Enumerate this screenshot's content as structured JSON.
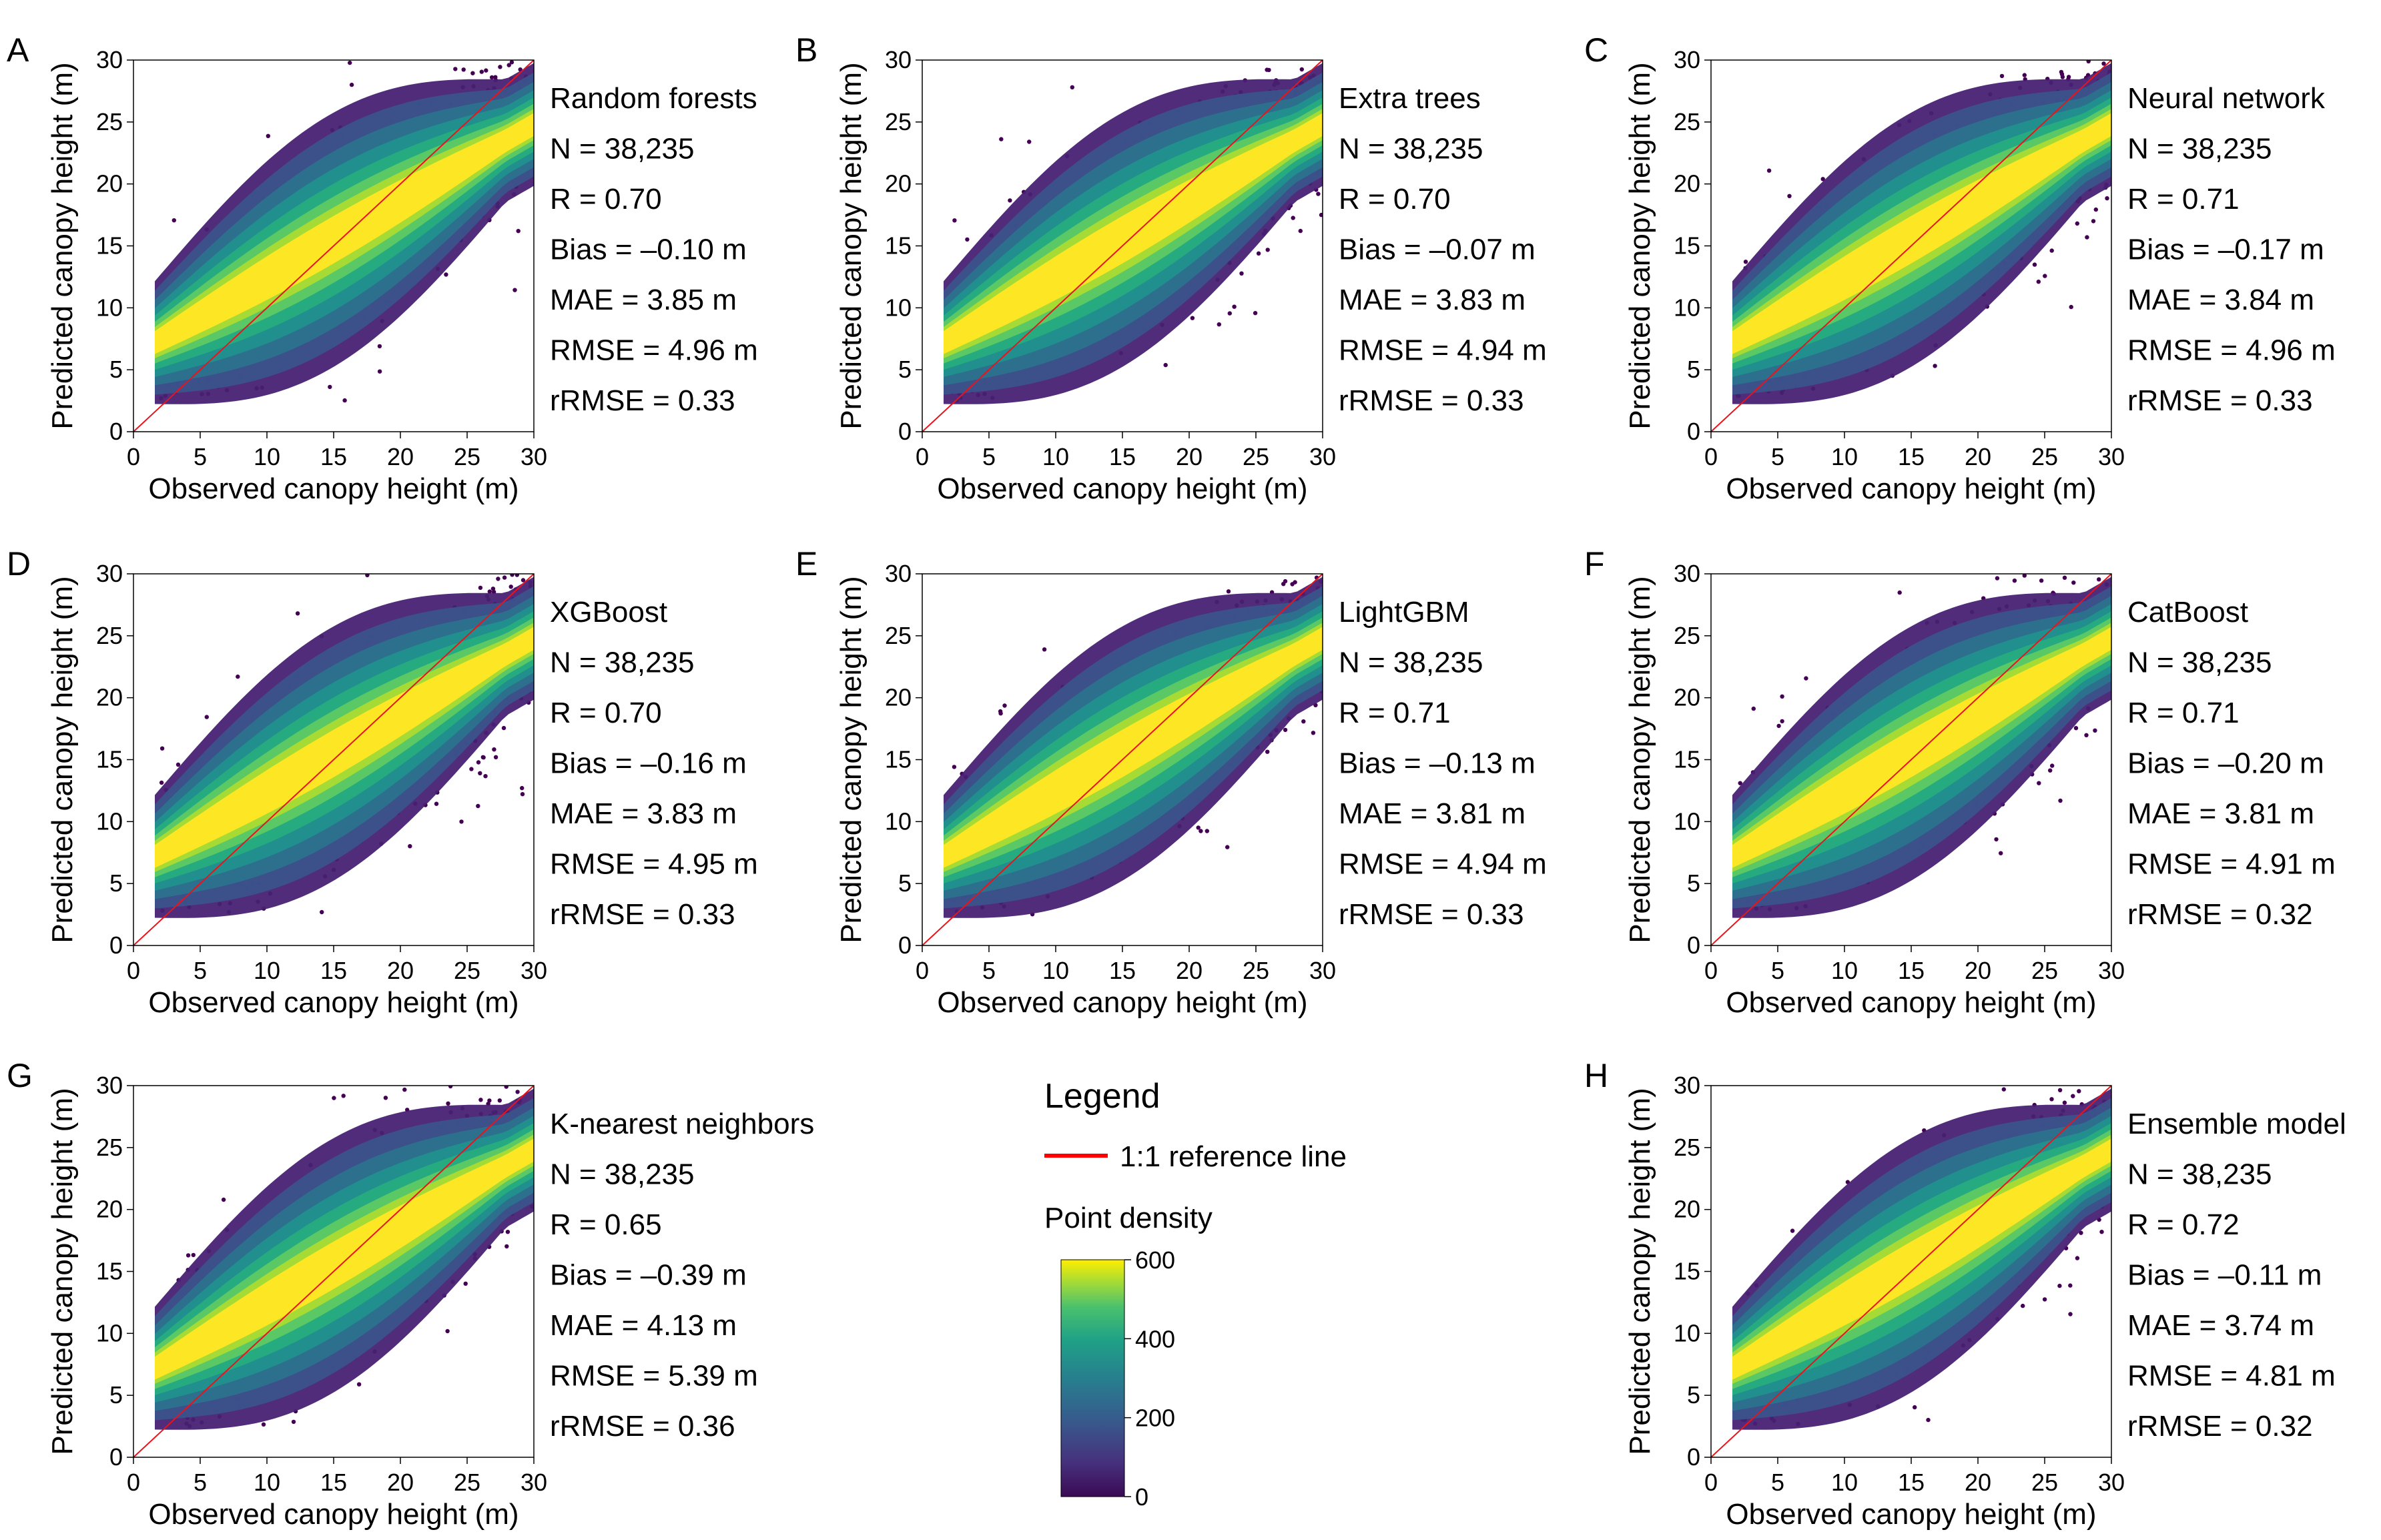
{
  "figure": {
    "x_axis_label": "Observed canopy height (m)",
    "y_axis_label": "Predicted canopy height (m)"
  },
  "chart_data": [
    {
      "type": "scatter",
      "panel": "A",
      "model": "Random forests",
      "xlabel": "Observed canopy height (m)",
      "ylabel": "Predicted canopy height (m)",
      "xlim": [
        0,
        30
      ],
      "ylim": [
        0,
        30
      ],
      "xticks": [
        0,
        5,
        10,
        15,
        20,
        25,
        30
      ],
      "yticks": [
        0,
        5,
        10,
        15,
        20,
        25,
        30
      ],
      "stats": [
        "Random forests",
        "N = 38,235",
        "R = 0.70",
        "Bias = –0.10 m",
        "MAE = 3.85 m",
        "RMSE = 4.96 m",
        "rRMSE = 0.33"
      ]
    },
    {
      "type": "scatter",
      "panel": "B",
      "model": "Extra trees",
      "xlabel": "Observed canopy height (m)",
      "ylabel": "Predicted canopy height (m)",
      "xlim": [
        0,
        30
      ],
      "ylim": [
        0,
        30
      ],
      "xticks": [
        0,
        5,
        10,
        15,
        20,
        25,
        30
      ],
      "yticks": [
        0,
        5,
        10,
        15,
        20,
        25,
        30
      ],
      "stats": [
        "Extra trees",
        "N = 38,235",
        "R = 0.70",
        "Bias = –0.07 m",
        "MAE = 3.83 m",
        "RMSE = 4.94 m",
        "rRMSE = 0.33"
      ]
    },
    {
      "type": "scatter",
      "panel": "C",
      "model": "Neural network",
      "xlabel": "Observed canopy height (m)",
      "ylabel": "Predicted canopy height (m)",
      "xlim": [
        0,
        30
      ],
      "ylim": [
        0,
        30
      ],
      "xticks": [
        0,
        5,
        10,
        15,
        20,
        25,
        30
      ],
      "yticks": [
        0,
        5,
        10,
        15,
        20,
        25,
        30
      ],
      "stats": [
        "Neural network",
        "N = 38,235",
        "R = 0.71",
        "Bias = –0.17 m",
        "MAE = 3.84 m",
        "RMSE = 4.96 m",
        "rRMSE = 0.33"
      ]
    },
    {
      "type": "scatter",
      "panel": "D",
      "model": "XGBoost",
      "xlabel": "Observed canopy height (m)",
      "ylabel": "Predicted canopy height (m)",
      "xlim": [
        0,
        30
      ],
      "ylim": [
        0,
        30
      ],
      "xticks": [
        0,
        5,
        10,
        15,
        20,
        25,
        30
      ],
      "yticks": [
        0,
        5,
        10,
        15,
        20,
        25,
        30
      ],
      "stats": [
        "XGBoost",
        "N = 38,235",
        "R = 0.70",
        "Bias = –0.16 m",
        "MAE = 3.83 m",
        "RMSE = 4.95 m",
        "rRMSE = 0.33"
      ]
    },
    {
      "type": "scatter",
      "panel": "E",
      "model": "LightGBM",
      "xlabel": "Observed canopy height (m)",
      "ylabel": "Predicted canopy height (m)",
      "xlim": [
        0,
        30
      ],
      "ylim": [
        0,
        30
      ],
      "xticks": [
        0,
        5,
        10,
        15,
        20,
        25,
        30
      ],
      "yticks": [
        0,
        5,
        10,
        15,
        20,
        25,
        30
      ],
      "stats": [
        "LightGBM",
        "N = 38,235",
        "R = 0.71",
        "Bias = –0.13 m",
        "MAE = 3.81 m",
        "RMSE = 4.94 m",
        "rRMSE = 0.33"
      ]
    },
    {
      "type": "scatter",
      "panel": "F",
      "model": "CatBoost",
      "xlabel": "Observed canopy height (m)",
      "ylabel": "Predicted canopy height (m)",
      "xlim": [
        0,
        30
      ],
      "ylim": [
        0,
        30
      ],
      "xticks": [
        0,
        5,
        10,
        15,
        20,
        25,
        30
      ],
      "yticks": [
        0,
        5,
        10,
        15,
        20,
        25,
        30
      ],
      "stats": [
        "CatBoost",
        "N = 38,235",
        "R = 0.71",
        "Bias = –0.20 m",
        "MAE = 3.81 m",
        "RMSE = 4.91 m",
        "rRMSE = 0.32"
      ]
    },
    {
      "type": "scatter",
      "panel": "G",
      "model": "K-nearest neighbors",
      "xlabel": "Observed canopy height (m)",
      "ylabel": "Predicted canopy height (m)",
      "xlim": [
        0,
        30
      ],
      "ylim": [
        0,
        30
      ],
      "xticks": [
        0,
        5,
        10,
        15,
        20,
        25,
        30
      ],
      "yticks": [
        0,
        5,
        10,
        15,
        20,
        25,
        30
      ],
      "stats": [
        "K-nearest neighbors",
        "N = 38,235",
        "R = 0.65",
        "Bias = –0.39 m",
        "MAE = 4.13 m",
        "RMSE = 5.39 m",
        "rRMSE = 0.36"
      ]
    },
    {
      "type": "scatter",
      "panel": "H",
      "model": "Ensemble model",
      "xlabel": "Observed canopy height (m)",
      "ylabel": "Predicted canopy height (m)",
      "xlim": [
        0,
        30
      ],
      "ylim": [
        0,
        30
      ],
      "xticks": [
        0,
        5,
        10,
        15,
        20,
        25,
        30
      ],
      "yticks": [
        0,
        5,
        10,
        15,
        20,
        25,
        30
      ],
      "stats": [
        "Ensemble model",
        "N = 38,235",
        "R = 0.72",
        "Bias = –0.11 m",
        "MAE = 3.74 m",
        "RMSE = 4.81 m",
        "rRMSE = 0.32"
      ]
    }
  ],
  "legend": {
    "title": "Legend",
    "line_label": "1:1 reference line",
    "line_color": "#ff0000",
    "density_title": "Point density",
    "density_ticks": [
      0,
      200,
      400,
      600
    ],
    "colormap": [
      "#440154",
      "#3b528b",
      "#21908d",
      "#5dc963",
      "#fde725",
      "#ffee00"
    ]
  },
  "colors": {
    "reference_line": "#e8141c",
    "density_low": "#440154",
    "density_high": "#fde725"
  }
}
